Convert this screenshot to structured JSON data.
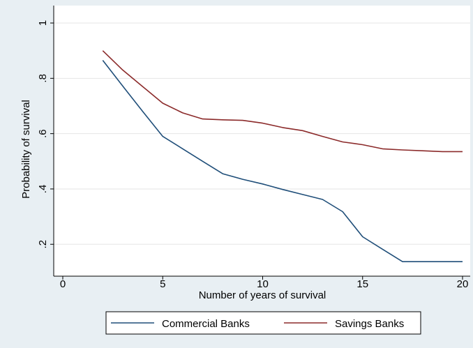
{
  "chart_data": {
    "type": "line",
    "xlabel": "Number of years of survival",
    "ylabel": "Probability of survival",
    "xlim": [
      0,
      20
    ],
    "ylim": [
      0.125,
      1.0
    ],
    "x_ticks": [
      0,
      5,
      10,
      15,
      20
    ],
    "x_tick_labels": [
      "0",
      "5",
      "10",
      "15",
      "20"
    ],
    "y_ticks": [
      0.2,
      0.4,
      0.6,
      0.8,
      1.0
    ],
    "y_tick_labels": [
      ".2",
      ".4",
      ".6",
      ".8",
      "1"
    ],
    "grid": true,
    "legend_position": "bottom",
    "series": [
      {
        "name": "Commercial Banks",
        "color": "#1f4e79",
        "x": [
          2,
          3,
          4,
          5,
          6,
          7,
          8,
          9,
          10,
          11,
          12,
          13,
          14,
          15,
          16,
          17,
          18,
          19,
          20
        ],
        "y": [
          0.865,
          0.772,
          0.68,
          0.59,
          0.545,
          0.5,
          0.455,
          0.435,
          0.418,
          0.398,
          0.38,
          0.362,
          0.318,
          0.227,
          0.182,
          0.137,
          0.137,
          0.137,
          0.137
        ]
      },
      {
        "name": "Savings Banks",
        "color": "#8b2a2a",
        "x": [
          2,
          3,
          4,
          5,
          6,
          7,
          8,
          9,
          10,
          11,
          12,
          13,
          14,
          15,
          16,
          17,
          18,
          19,
          20
        ],
        "y": [
          0.9,
          0.83,
          0.77,
          0.71,
          0.675,
          0.653,
          0.65,
          0.648,
          0.638,
          0.622,
          0.611,
          0.59,
          0.57,
          0.56,
          0.545,
          0.541,
          0.538,
          0.535,
          0.535
        ]
      }
    ]
  }
}
